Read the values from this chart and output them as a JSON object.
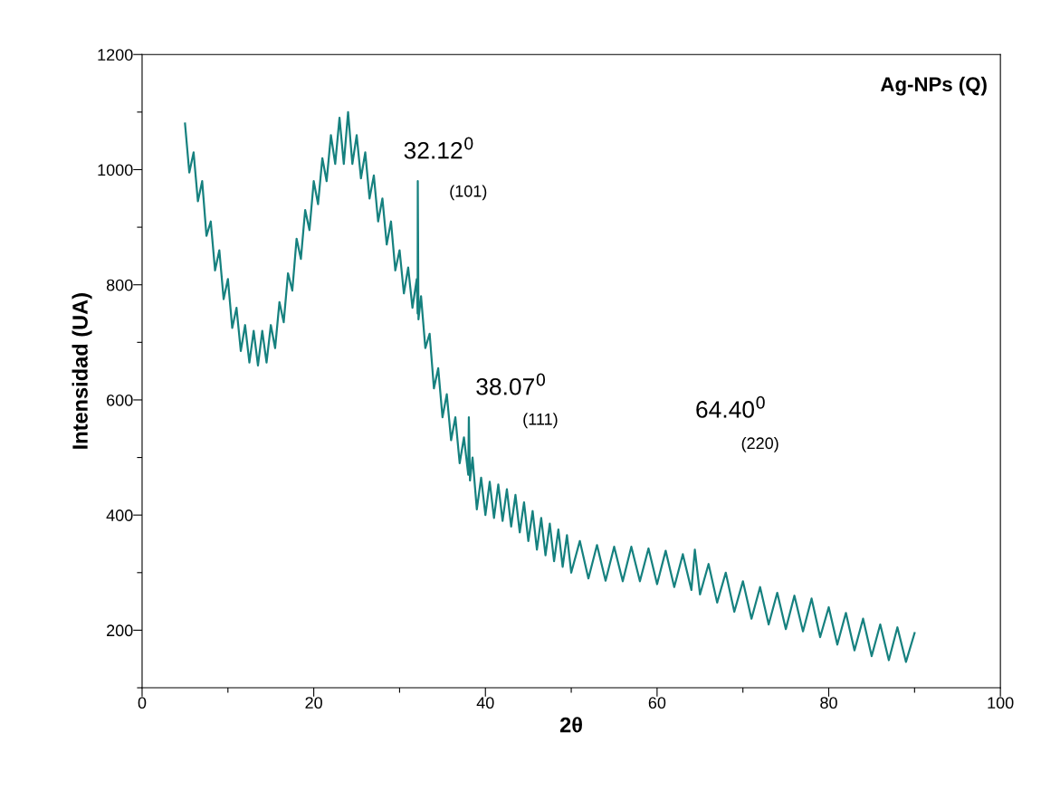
{
  "chart_data": {
    "type": "line",
    "xlabel": "2θ",
    "ylabel": "Intensidad (UA)",
    "xlim": [
      0,
      100
    ],
    "ylim": [
      100,
      1200
    ],
    "xticks": [
      0,
      {
        "value": 10,
        "label": null
      },
      20,
      {
        "value": 30,
        "label": null
      },
      40,
      {
        "value": 50,
        "label": null
      },
      60,
      {
        "value": 70,
        "label": null
      },
      80,
      {
        "value": 90,
        "label": null
      },
      100
    ],
    "yticks": [
      {
        "value": 100,
        "label": null
      },
      200,
      {
        "value": 300,
        "label": null
      },
      400,
      {
        "value": 500,
        "label": null
      },
      600,
      {
        "value": 700,
        "label": null
      },
      800,
      {
        "value": 900,
        "label": null
      },
      1000,
      {
        "value": 1100,
        "label": null
      },
      1200
    ],
    "grid": false,
    "legend": false,
    "annotations": [
      "Ag-NPs (Q)",
      "32.12$^{0}$",
      "(101)",
      "38.07$^{0}$",
      "(111)",
      "64.40$^{0}$",
      "(220)"
    ],
    "series": [
      {
        "color": "#16817f",
        "x": [
          5,
          5.5,
          6,
          6.5,
          7,
          7.5,
          8,
          8.5,
          9,
          9.5,
          10,
          10.5,
          11,
          11.5,
          12,
          12.5,
          13,
          13.5,
          14,
          14.5,
          15,
          15.5,
          16,
          16.5,
          17,
          17.5,
          18,
          18.5,
          19,
          19.5,
          20,
          20.5,
          21,
          21.5,
          22,
          22.5,
          23,
          23.5,
          24,
          24.5,
          25,
          25.5,
          26,
          26.5,
          27,
          27.5,
          28,
          28.5,
          29,
          29.5,
          30,
          30.5,
          31,
          31.5,
          32,
          32.1,
          32.12,
          32.2,
          32.5,
          33,
          33.5,
          34,
          34.5,
          35,
          35.5,
          36,
          36.5,
          37,
          37.5,
          38,
          38.07,
          38.2,
          38.5,
          39,
          39.5,
          40,
          40.5,
          41,
          41.5,
          42,
          42.5,
          43,
          43.5,
          44,
          44.5,
          45,
          45.5,
          46,
          46.5,
          47,
          47.5,
          48,
          48.5,
          49,
          49.5,
          50,
          51,
          52,
          53,
          54,
          55,
          56,
          57,
          58,
          59,
          60,
          61,
          62,
          63,
          64,
          64.4,
          65,
          66,
          67,
          68,
          69,
          70,
          71,
          72,
          73,
          74,
          75,
          76,
          77,
          78,
          79,
          80,
          81,
          82,
          83,
          84,
          85,
          86,
          87,
          88,
          89,
          90
        ],
        "values": [
          1080,
          995,
          1030,
          945,
          980,
          885,
          910,
          825,
          860,
          775,
          810,
          725,
          760,
          685,
          730,
          665,
          720,
          660,
          720,
          665,
          730,
          690,
          770,
          735,
          820,
          790,
          880,
          845,
          930,
          895,
          980,
          940,
          1020,
          980,
          1060,
          1010,
          1090,
          1010,
          1100,
          1010,
          1060,
          985,
          1030,
          950,
          990,
          910,
          950,
          870,
          910,
          825,
          860,
          785,
          830,
          760,
          810,
          750,
          980,
          740,
          780,
          690,
          715,
          620,
          655,
          570,
          610,
          530,
          570,
          490,
          535,
          470,
          570,
          460,
          500,
          410,
          465,
          400,
          458,
          395,
          453,
          390,
          445,
          380,
          435,
          370,
          422,
          355,
          407,
          340,
          395,
          330,
          385,
          320,
          375,
          310,
          365,
          300,
          355,
          290,
          348,
          286,
          345,
          285,
          345,
          285,
          342,
          280,
          338,
          275,
          332,
          270,
          340,
          262,
          315,
          248,
          300,
          232,
          285,
          220,
          275,
          210,
          265,
          202,
          260,
          198,
          255,
          188,
          240,
          175,
          230,
          165,
          220,
          155,
          210,
          148,
          205,
          145,
          195
        ]
      }
    ]
  }
}
